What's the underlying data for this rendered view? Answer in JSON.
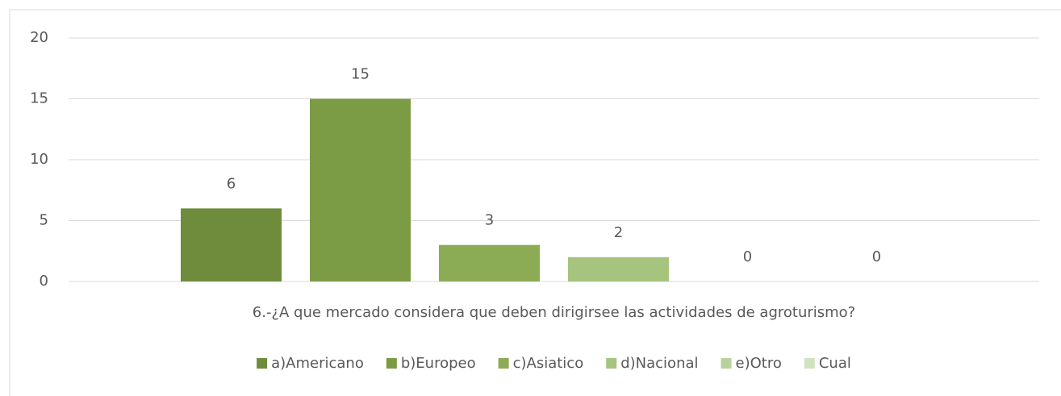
{
  "chart_data": {
    "type": "bar",
    "categories": [
      "6.-¿A que mercado considera que deben dirigirsee las actividades de agroturismo?"
    ],
    "series": [
      {
        "name": "a)Americano",
        "color": "#6e8c3c",
        "values": [
          6
        ]
      },
      {
        "name": "b)Europeo",
        "color": "#7c9b45",
        "values": [
          15
        ]
      },
      {
        "name": "c)Asiatico",
        "color": "#8cab55",
        "values": [
          3
        ]
      },
      {
        "name": "d)Nacional",
        "color": "#a6c47e",
        "values": [
          2
        ]
      },
      {
        "name": "e)Otro",
        "color": "#b9d19a",
        "values": [
          0
        ]
      },
      {
        "name": "Cual",
        "color": "#d2e2bf",
        "values": [
          0
        ]
      }
    ],
    "ylim": [
      0,
      20
    ],
    "yticks": [
      0,
      5,
      10,
      15,
      20
    ],
    "grid": true,
    "legend": "bottom"
  }
}
